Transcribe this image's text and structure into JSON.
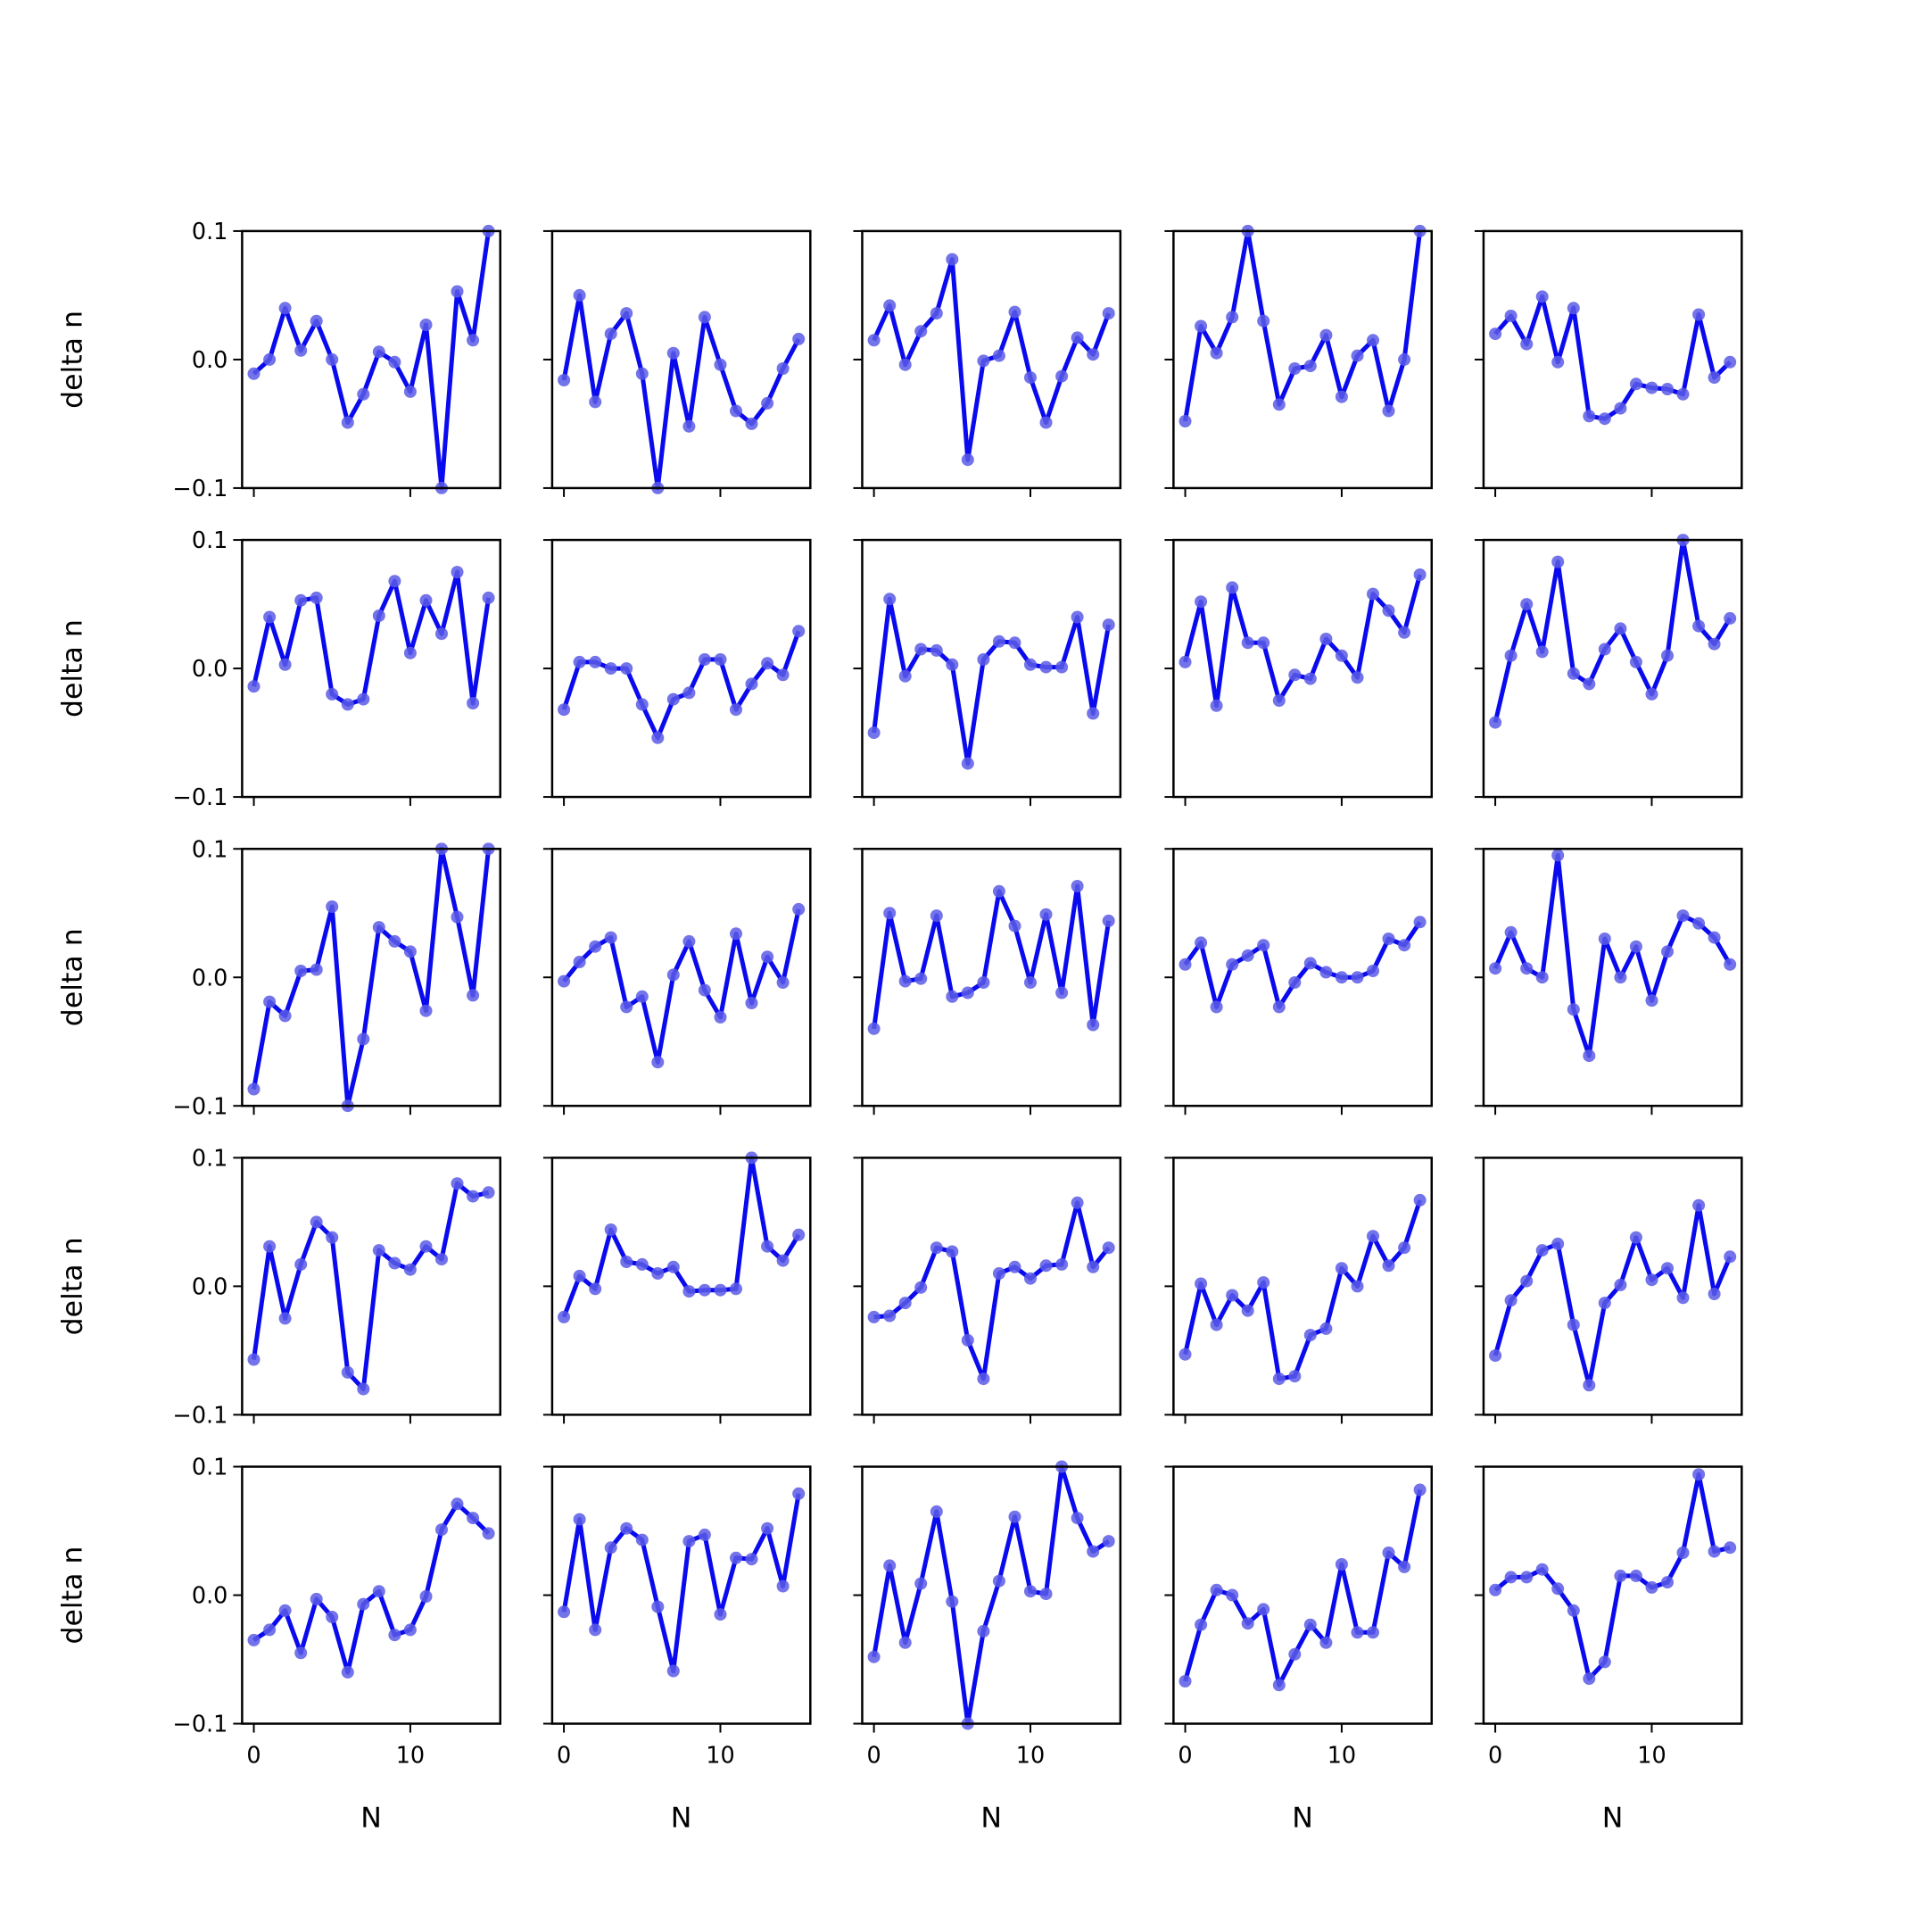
{
  "colors": {
    "line": "#0a0aee",
    "marker": "#5a5ae6",
    "axes": "#000000",
    "background": "#ffffff"
  },
  "chart_data": {
    "type": "line",
    "layout": "5x5 grid of small multiples, shared axes",
    "xlabel": "N",
    "ylabel": "delta n",
    "xlim": [
      -0.75,
      15.75
    ],
    "ylim": [
      -0.1,
      0.1
    ],
    "xticks": [
      0,
      10
    ],
    "xtick_labels": [
      "0",
      "10"
    ],
    "yticks": [
      0.1,
      0.0,
      -0.1
    ],
    "ytick_labels": [
      "0.1",
      "0.0",
      "−0.1"
    ],
    "grid": false,
    "legend": "none",
    "x": [
      0,
      1,
      2,
      3,
      4,
      5,
      6,
      7,
      8,
      9,
      10,
      11,
      12,
      13,
      14,
      15
    ],
    "panels": [
      {
        "row": 0,
        "col": 0,
        "values": [
          -0.011,
          0.0,
          0.04,
          0.007,
          0.03,
          0.0,
          -0.049,
          -0.027,
          0.006,
          -0.002,
          -0.025,
          0.027,
          -0.1,
          0.053,
          0.015,
          0.1
        ]
      },
      {
        "row": 0,
        "col": 1,
        "values": [
          -0.016,
          0.05,
          -0.033,
          0.02,
          0.036,
          -0.011,
          -0.1,
          0.005,
          -0.052,
          0.033,
          -0.004,
          -0.04,
          -0.05,
          -0.034,
          -0.007,
          0.016
        ]
      },
      {
        "row": 0,
        "col": 2,
        "values": [
          0.015,
          0.042,
          -0.004,
          0.022,
          0.036,
          0.078,
          -0.078,
          -0.001,
          0.003,
          0.037,
          -0.014,
          -0.049,
          -0.013,
          0.017,
          0.004,
          0.036
        ]
      },
      {
        "row": 0,
        "col": 3,
        "values": [
          -0.048,
          0.026,
          0.005,
          0.033,
          0.1,
          0.03,
          -0.035,
          -0.007,
          -0.005,
          0.019,
          -0.029,
          0.003,
          0.015,
          -0.04,
          0.0,
          0.1
        ]
      },
      {
        "row": 0,
        "col": 4,
        "values": [
          0.02,
          0.034,
          0.012,
          0.049,
          -0.002,
          0.04,
          -0.044,
          -0.046,
          -0.038,
          -0.019,
          -0.022,
          -0.023,
          -0.027,
          0.035,
          -0.014,
          -0.002
        ]
      },
      {
        "row": 1,
        "col": 0,
        "values": [
          -0.014,
          0.04,
          0.003,
          0.053,
          0.055,
          -0.02,
          -0.028,
          -0.024,
          0.041,
          0.068,
          0.012,
          0.053,
          0.027,
          0.075,
          -0.027,
          0.055
        ]
      },
      {
        "row": 1,
        "col": 1,
        "values": [
          -0.032,
          0.005,
          0.005,
          0.0,
          0.0,
          -0.028,
          -0.054,
          -0.024,
          -0.019,
          0.007,
          0.007,
          -0.032,
          -0.012,
          0.004,
          -0.005,
          0.029
        ]
      },
      {
        "row": 1,
        "col": 2,
        "values": [
          -0.05,
          0.054,
          -0.006,
          0.015,
          0.014,
          0.003,
          -0.074,
          0.007,
          0.021,
          0.02,
          0.003,
          0.001,
          0.001,
          0.04,
          -0.035,
          0.034
        ]
      },
      {
        "row": 1,
        "col": 3,
        "values": [
          0.005,
          0.052,
          -0.029,
          0.063,
          0.02,
          0.02,
          -0.025,
          -0.005,
          -0.008,
          0.023,
          0.01,
          -0.007,
          0.058,
          0.045,
          0.028,
          0.073
        ]
      },
      {
        "row": 1,
        "col": 4,
        "values": [
          -0.042,
          0.01,
          0.05,
          0.013,
          0.083,
          -0.004,
          -0.012,
          0.015,
          0.031,
          0.005,
          -0.02,
          0.01,
          0.1,
          0.033,
          0.019,
          0.039
        ]
      },
      {
        "row": 2,
        "col": 0,
        "values": [
          -0.087,
          -0.019,
          -0.03,
          0.005,
          0.006,
          0.055,
          -0.1,
          -0.048,
          0.039,
          0.028,
          0.02,
          -0.026,
          0.1,
          0.047,
          -0.014,
          0.1
        ]
      },
      {
        "row": 2,
        "col": 1,
        "values": [
          -0.003,
          0.012,
          0.024,
          0.031,
          -0.023,
          -0.015,
          -0.066,
          0.002,
          0.028,
          -0.01,
          -0.031,
          0.034,
          -0.02,
          0.016,
          -0.004,
          0.053
        ]
      },
      {
        "row": 2,
        "col": 2,
        "values": [
          -0.04,
          0.05,
          -0.003,
          -0.001,
          0.048,
          -0.015,
          -0.012,
          -0.004,
          0.067,
          0.04,
          -0.004,
          0.049,
          -0.012,
          0.071,
          -0.037,
          0.044
        ]
      },
      {
        "row": 2,
        "col": 3,
        "values": [
          0.01,
          0.027,
          -0.023,
          0.01,
          0.017,
          0.025,
          -0.023,
          -0.004,
          0.011,
          0.004,
          0.0,
          0.0,
          0.005,
          0.03,
          0.025,
          0.043
        ]
      },
      {
        "row": 2,
        "col": 4,
        "values": [
          0.007,
          0.035,
          0.007,
          0.0,
          0.095,
          -0.025,
          -0.061,
          0.03,
          0.0,
          0.024,
          -0.018,
          0.02,
          0.048,
          0.042,
          0.031,
          0.01
        ]
      },
      {
        "row": 3,
        "col": 0,
        "values": [
          -0.057,
          0.031,
          -0.025,
          0.017,
          0.05,
          0.038,
          -0.067,
          -0.08,
          0.028,
          0.018,
          0.013,
          0.031,
          0.021,
          0.08,
          0.07,
          0.073
        ]
      },
      {
        "row": 3,
        "col": 1,
        "values": [
          -0.024,
          0.008,
          -0.002,
          0.044,
          0.019,
          0.017,
          0.01,
          0.015,
          -0.004,
          -0.003,
          -0.003,
          -0.002,
          0.1,
          0.031,
          0.02,
          0.04
        ]
      },
      {
        "row": 3,
        "col": 2,
        "values": [
          -0.024,
          -0.023,
          -0.013,
          -0.001,
          0.03,
          0.027,
          -0.042,
          -0.072,
          0.01,
          0.015,
          0.006,
          0.016,
          0.017,
          0.065,
          0.015,
          0.03
        ]
      },
      {
        "row": 3,
        "col": 3,
        "values": [
          -0.053,
          0.002,
          -0.03,
          -0.007,
          -0.019,
          0.003,
          -0.072,
          -0.07,
          -0.038,
          -0.033,
          0.014,
          0.0,
          0.039,
          0.016,
          0.03,
          0.067
        ]
      },
      {
        "row": 3,
        "col": 4,
        "values": [
          -0.054,
          -0.011,
          0.004,
          0.028,
          0.033,
          -0.03,
          -0.077,
          -0.013,
          0.001,
          0.038,
          0.005,
          0.014,
          -0.009,
          0.063,
          -0.006,
          0.023
        ]
      },
      {
        "row": 4,
        "col": 0,
        "values": [
          -0.035,
          -0.027,
          -0.012,
          -0.045,
          -0.003,
          -0.017,
          -0.06,
          -0.007,
          0.003,
          -0.031,
          -0.027,
          -0.001,
          0.051,
          0.071,
          0.06,
          0.048
        ]
      },
      {
        "row": 4,
        "col": 1,
        "values": [
          -0.013,
          0.059,
          -0.027,
          0.037,
          0.052,
          0.043,
          -0.009,
          -0.059,
          0.042,
          0.047,
          -0.015,
          0.029,
          0.028,
          0.052,
          0.007,
          0.079
        ]
      },
      {
        "row": 4,
        "col": 2,
        "values": [
          -0.048,
          0.023,
          -0.037,
          0.009,
          0.065,
          -0.005,
          -0.1,
          -0.028,
          0.011,
          0.061,
          0.003,
          0.001,
          0.1,
          0.06,
          0.034,
          0.042
        ]
      },
      {
        "row": 4,
        "col": 3,
        "values": [
          -0.067,
          -0.023,
          0.004,
          0.0,
          -0.022,
          -0.011,
          -0.07,
          -0.046,
          -0.023,
          -0.037,
          0.024,
          -0.029,
          -0.029,
          0.033,
          0.022,
          0.082
        ]
      },
      {
        "row": 4,
        "col": 4,
        "values": [
          0.004,
          0.014,
          0.014,
          0.02,
          0.005,
          -0.012,
          -0.065,
          -0.052,
          0.015,
          0.015,
          0.006,
          0.01,
          0.033,
          0.094,
          0.034,
          0.037
        ]
      }
    ]
  }
}
